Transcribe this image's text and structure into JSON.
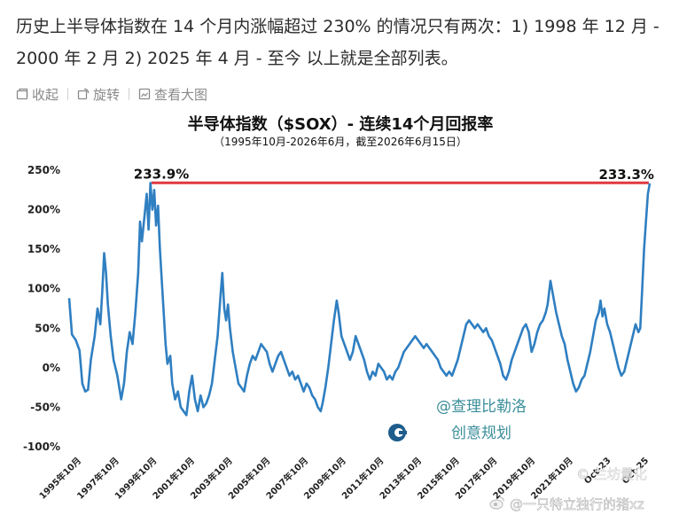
{
  "post": {
    "text": "历史上半导体指数在 14 个月内涨幅超过 230% 的情况只有两次：1) 1998 年 12 月 - 2000 年 2 月 2) 2025 年 4 月 - 至今 以上就是全部列表。"
  },
  "toolbar": {
    "collapse_label": "收起",
    "rotate_label": "旋转",
    "view_large_label": "查看大图"
  },
  "chart_data": {
    "type": "line",
    "title": "半导体指数（$SOX）- 连续14个月回报率",
    "subtitle": "（1995年10月-2026年6月，截至2026年6月15日）",
    "y_tick_labels": [
      "250%",
      "200%",
      "150%",
      "100%",
      "50%",
      "0%",
      "-50%",
      "-100%"
    ],
    "ylim": [
      -100,
      250
    ],
    "xlim": [
      1995.75,
      2026.45
    ],
    "x_tick_labels": [
      "1995年10月",
      "1997年10月",
      "1999年10月",
      "2001年10月",
      "2003年10月",
      "2005年10月",
      "2007年10月",
      "2009年10月",
      "2011年10月",
      "2013年10月",
      "2015年10月",
      "2017年10月",
      "2019年10月",
      "2021年10月",
      "Oct-23",
      "Oct-25"
    ],
    "x_tick_values": [
      1995.75,
      1997.75,
      1999.75,
      2001.75,
      2003.75,
      2005.75,
      2007.75,
      2009.75,
      2011.75,
      2013.75,
      2015.75,
      2017.75,
      2019.75,
      2021.75,
      2023.75,
      2025.75
    ],
    "annotations": [
      {
        "label": "233.9%",
        "x": 2000.1,
        "y": 233.9
      },
      {
        "label": "233.3%",
        "x": 2026.4,
        "y": 233.3
      }
    ],
    "reference_line": {
      "y": 234,
      "x_start": 2000.1,
      "x_end": 2026.4,
      "color": "#e0393e"
    },
    "series": [
      {
        "color": "#2f7fc1",
        "points": [
          [
            1995.75,
            88
          ],
          [
            1995.9,
            42
          ],
          [
            1996.1,
            35
          ],
          [
            1996.3,
            22
          ],
          [
            1996.45,
            -20
          ],
          [
            1996.6,
            -30
          ],
          [
            1996.75,
            -28
          ],
          [
            1996.9,
            10
          ],
          [
            1997.1,
            40
          ],
          [
            1997.25,
            75
          ],
          [
            1997.4,
            55
          ],
          [
            1997.5,
            95
          ],
          [
            1997.6,
            145
          ],
          [
            1997.7,
            120
          ],
          [
            1997.8,
            80
          ],
          [
            1997.95,
            40
          ],
          [
            1998.1,
            10
          ],
          [
            1998.3,
            -10
          ],
          [
            1998.5,
            -40
          ],
          [
            1998.65,
            -20
          ],
          [
            1998.8,
            20
          ],
          [
            1998.95,
            45
          ],
          [
            1999.1,
            30
          ],
          [
            1999.25,
            70
          ],
          [
            1999.4,
            120
          ],
          [
            1999.5,
            185
          ],
          [
            1999.6,
            160
          ],
          [
            1999.75,
            195
          ],
          [
            1999.85,
            220
          ],
          [
            1999.95,
            175
          ],
          [
            2000.05,
            233.9
          ],
          [
            2000.15,
            200
          ],
          [
            2000.25,
            225
          ],
          [
            2000.35,
            180
          ],
          [
            2000.45,
            205
          ],
          [
            2000.55,
            150
          ],
          [
            2000.7,
            90
          ],
          [
            2000.85,
            30
          ],
          [
            2000.95,
            5
          ],
          [
            2001.1,
            15
          ],
          [
            2001.2,
            -20
          ],
          [
            2001.35,
            -40
          ],
          [
            2001.5,
            -30
          ],
          [
            2001.65,
            -50
          ],
          [
            2001.8,
            -55
          ],
          [
            2001.95,
            -60
          ],
          [
            2002.1,
            -30
          ],
          [
            2002.25,
            -10
          ],
          [
            2002.4,
            -40
          ],
          [
            2002.55,
            -55
          ],
          [
            2002.7,
            -35
          ],
          [
            2002.85,
            -50
          ],
          [
            2003.0,
            -45
          ],
          [
            2003.15,
            -35
          ],
          [
            2003.3,
            -20
          ],
          [
            2003.45,
            10
          ],
          [
            2003.6,
            40
          ],
          [
            2003.75,
            90
          ],
          [
            2003.85,
            120
          ],
          [
            2003.95,
            75
          ],
          [
            2004.05,
            60
          ],
          [
            2004.15,
            80
          ],
          [
            2004.25,
            50
          ],
          [
            2004.4,
            20
          ],
          [
            2004.55,
            0
          ],
          [
            2004.7,
            -20
          ],
          [
            2004.85,
            -25
          ],
          [
            2005.0,
            -30
          ],
          [
            2005.15,
            -10
          ],
          [
            2005.3,
            5
          ],
          [
            2005.45,
            15
          ],
          [
            2005.6,
            10
          ],
          [
            2005.75,
            20
          ],
          [
            2005.9,
            30
          ],
          [
            2006.05,
            25
          ],
          [
            2006.2,
            20
          ],
          [
            2006.35,
            5
          ],
          [
            2006.5,
            -5
          ],
          [
            2006.65,
            5
          ],
          [
            2006.8,
            15
          ],
          [
            2006.95,
            20
          ],
          [
            2007.1,
            10
          ],
          [
            2007.25,
            0
          ],
          [
            2007.4,
            -10
          ],
          [
            2007.55,
            -5
          ],
          [
            2007.7,
            -15
          ],
          [
            2007.85,
            -10
          ],
          [
            2008.0,
            -20
          ],
          [
            2008.15,
            -30
          ],
          [
            2008.3,
            -20
          ],
          [
            2008.45,
            -25
          ],
          [
            2008.6,
            -35
          ],
          [
            2008.75,
            -40
          ],
          [
            2008.9,
            -50
          ],
          [
            2009.05,
            -55
          ],
          [
            2009.15,
            -45
          ],
          [
            2009.3,
            -25
          ],
          [
            2009.45,
            0
          ],
          [
            2009.6,
            30
          ],
          [
            2009.75,
            60
          ],
          [
            2009.9,
            85
          ],
          [
            2010.0,
            70
          ],
          [
            2010.15,
            40
          ],
          [
            2010.3,
            30
          ],
          [
            2010.45,
            20
          ],
          [
            2010.6,
            10
          ],
          [
            2010.75,
            20
          ],
          [
            2010.9,
            40
          ],
          [
            2011.05,
            30
          ],
          [
            2011.2,
            20
          ],
          [
            2011.35,
            10
          ],
          [
            2011.5,
            -5
          ],
          [
            2011.65,
            -15
          ],
          [
            2011.8,
            -5
          ],
          [
            2011.95,
            -10
          ],
          [
            2012.1,
            5
          ],
          [
            2012.25,
            0
          ],
          [
            2012.4,
            -5
          ],
          [
            2012.55,
            -15
          ],
          [
            2012.7,
            -10
          ],
          [
            2012.85,
            -15
          ],
          [
            2013.0,
            -5
          ],
          [
            2013.15,
            0
          ],
          [
            2013.3,
            10
          ],
          [
            2013.45,
            20
          ],
          [
            2013.6,
            25
          ],
          [
            2013.75,
            30
          ],
          [
            2013.9,
            35
          ],
          [
            2014.05,
            40
          ],
          [
            2014.2,
            35
          ],
          [
            2014.35,
            30
          ],
          [
            2014.5,
            25
          ],
          [
            2014.65,
            30
          ],
          [
            2014.8,
            25
          ],
          [
            2014.95,
            20
          ],
          [
            2015.1,
            15
          ],
          [
            2015.25,
            10
          ],
          [
            2015.4,
            0
          ],
          [
            2015.55,
            -5
          ],
          [
            2015.7,
            -10
          ],
          [
            2015.85,
            -5
          ],
          [
            2016.0,
            -10
          ],
          [
            2016.15,
            0
          ],
          [
            2016.3,
            10
          ],
          [
            2016.45,
            25
          ],
          [
            2016.6,
            40
          ],
          [
            2016.75,
            55
          ],
          [
            2016.9,
            60
          ],
          [
            2017.05,
            55
          ],
          [
            2017.2,
            50
          ],
          [
            2017.35,
            55
          ],
          [
            2017.5,
            50
          ],
          [
            2017.65,
            45
          ],
          [
            2017.8,
            50
          ],
          [
            2017.95,
            40
          ],
          [
            2018.1,
            35
          ],
          [
            2018.25,
            25
          ],
          [
            2018.4,
            15
          ],
          [
            2018.55,
            5
          ],
          [
            2018.7,
            -10
          ],
          [
            2018.85,
            -15
          ],
          [
            2019.0,
            -5
          ],
          [
            2019.15,
            10
          ],
          [
            2019.3,
            20
          ],
          [
            2019.45,
            30
          ],
          [
            2019.6,
            40
          ],
          [
            2019.75,
            50
          ],
          [
            2019.9,
            55
          ],
          [
            2020.05,
            45
          ],
          [
            2020.2,
            20
          ],
          [
            2020.35,
            30
          ],
          [
            2020.5,
            45
          ],
          [
            2020.65,
            55
          ],
          [
            2020.8,
            60
          ],
          [
            2020.95,
            70
          ],
          [
            2021.05,
            80
          ],
          [
            2021.2,
            110
          ],
          [
            2021.35,
            90
          ],
          [
            2021.5,
            70
          ],
          [
            2021.65,
            55
          ],
          [
            2021.8,
            40
          ],
          [
            2021.95,
            30
          ],
          [
            2022.1,
            10
          ],
          [
            2022.25,
            -5
          ],
          [
            2022.4,
            -20
          ],
          [
            2022.55,
            -30
          ],
          [
            2022.7,
            -25
          ],
          [
            2022.85,
            -15
          ],
          [
            2023.0,
            -10
          ],
          [
            2023.15,
            5
          ],
          [
            2023.3,
            20
          ],
          [
            2023.45,
            40
          ],
          [
            2023.6,
            60
          ],
          [
            2023.75,
            70
          ],
          [
            2023.85,
            85
          ],
          [
            2023.95,
            65
          ],
          [
            2024.05,
            75
          ],
          [
            2024.2,
            55
          ],
          [
            2024.35,
            45
          ],
          [
            2024.5,
            30
          ],
          [
            2024.65,
            15
          ],
          [
            2024.8,
            0
          ],
          [
            2024.95,
            -10
          ],
          [
            2025.1,
            -5
          ],
          [
            2025.25,
            10
          ],
          [
            2025.4,
            25
          ],
          [
            2025.55,
            40
          ],
          [
            2025.7,
            55
          ],
          [
            2025.85,
            45
          ],
          [
            2025.95,
            50
          ],
          [
            2026.05,
            100
          ],
          [
            2026.15,
            150
          ],
          [
            2026.25,
            185
          ],
          [
            2026.35,
            220
          ],
          [
            2026.45,
            233.3
          ]
        ]
      }
    ]
  },
  "watermark": {
    "mention": "@查理比勒洛",
    "brand": "创意规划",
    "overlay_text": "© 兰坊量化",
    "footer_credit": "@一只特立独行的猪xz"
  }
}
